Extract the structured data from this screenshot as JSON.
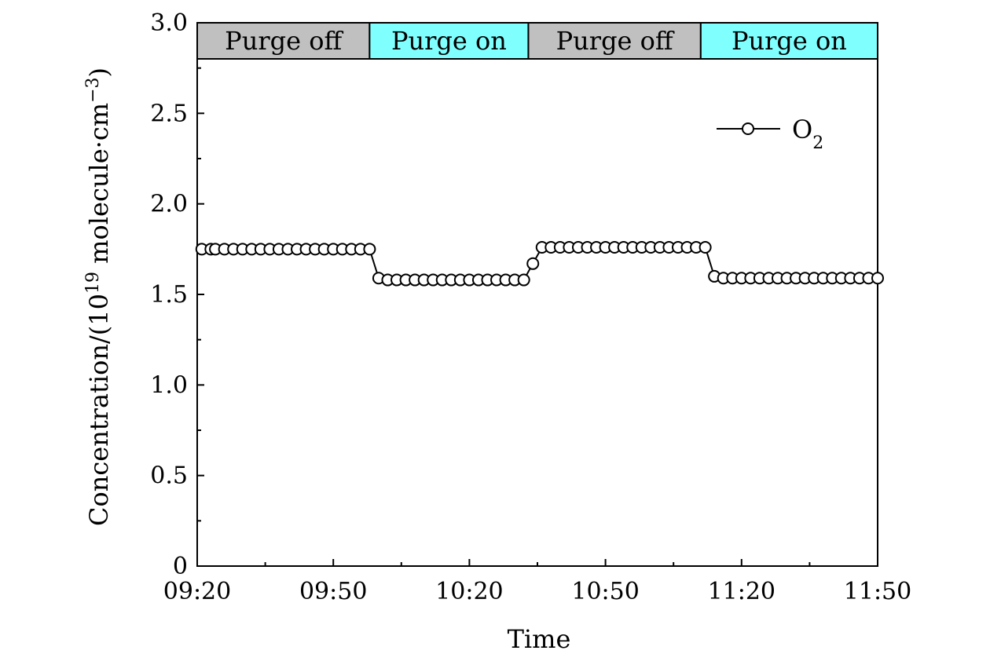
{
  "chart_data": {
    "type": "line",
    "title": "",
    "xlabel": "Time",
    "ylabel": "Concentration/(10",
    "ylabel_sup": "19",
    "ylabel_tail": " molecule·cm",
    "ylabel_tail_sup": "−3",
    "ylabel_end": ")",
    "ylim": [
      0,
      3.0
    ],
    "yticks": [
      0,
      0.5,
      1.0,
      1.5,
      2.0,
      2.5,
      3.0
    ],
    "ytick_labels": [
      "0",
      "0.5",
      "1.0",
      "1.5",
      "2.0",
      "2.5",
      "3.0"
    ],
    "xlim": [
      "09:20",
      "11:50"
    ],
    "xticks": [
      "09:20",
      "09:50",
      "10:20",
      "10:50",
      "11:20",
      "11:50"
    ],
    "x_minor_ticks": [
      "09:35",
      "10:05",
      "10:35",
      "11:05",
      "11:35"
    ],
    "grid": false,
    "legend_position": "top-right",
    "bands": [
      {
        "label": "Purge off",
        "start": "09:20",
        "end": "09:58",
        "color": "#c0c0c0"
      },
      {
        "label": "Purge on",
        "start": "09:58",
        "end": "10:33",
        "color": "#80ffff"
      },
      {
        "label": "Purge off",
        "start": "10:33",
        "end": "11:11",
        "color": "#c0c0c0"
      },
      {
        "label": "Purge on",
        "start": "11:11",
        "end": "11:50",
        "color": "#80ffff"
      }
    ],
    "series": [
      {
        "name": "O",
        "name_sub": "2",
        "marker": "open-circle",
        "color": "#000000",
        "x": [
          "09:21",
          "09:23",
          "09:24",
          "09:26",
          "09:28",
          "09:30",
          "09:32",
          "09:34",
          "09:36",
          "09:38",
          "09:40",
          "09:42",
          "09:44",
          "09:46",
          "09:48",
          "09:50",
          "09:52",
          "09:54",
          "09:56",
          "09:58",
          "10:00",
          "10:02",
          "10:04",
          "10:06",
          "10:08",
          "10:10",
          "10:12",
          "10:14",
          "10:16",
          "10:18",
          "10:20",
          "10:22",
          "10:24",
          "10:26",
          "10:28",
          "10:30",
          "10:32",
          "10:34",
          "10:36",
          "10:38",
          "10:40",
          "10:42",
          "10:44",
          "10:46",
          "10:48",
          "10:50",
          "10:52",
          "10:54",
          "10:56",
          "10:58",
          "11:00",
          "11:02",
          "11:04",
          "11:06",
          "11:08",
          "11:10",
          "11:12",
          "11:14",
          "11:16",
          "11:18",
          "11:20",
          "11:22",
          "11:24",
          "11:26",
          "11:28",
          "11:30",
          "11:32",
          "11:34",
          "11:36",
          "11:38",
          "11:40",
          "11:42",
          "11:44",
          "11:46",
          "11:48",
          "11:50"
        ],
        "values": [
          1.75,
          1.75,
          1.75,
          1.75,
          1.75,
          1.75,
          1.75,
          1.75,
          1.75,
          1.75,
          1.75,
          1.75,
          1.75,
          1.75,
          1.75,
          1.75,
          1.75,
          1.75,
          1.75,
          1.75,
          1.59,
          1.58,
          1.58,
          1.58,
          1.58,
          1.58,
          1.58,
          1.58,
          1.58,
          1.58,
          1.58,
          1.58,
          1.58,
          1.58,
          1.58,
          1.58,
          1.58,
          1.67,
          1.76,
          1.76,
          1.76,
          1.76,
          1.76,
          1.76,
          1.76,
          1.76,
          1.76,
          1.76,
          1.76,
          1.76,
          1.76,
          1.76,
          1.76,
          1.76,
          1.76,
          1.76,
          1.76,
          1.6,
          1.59,
          1.59,
          1.59,
          1.59,
          1.59,
          1.59,
          1.59,
          1.59,
          1.59,
          1.59,
          1.59,
          1.59,
          1.59,
          1.59,
          1.59,
          1.59,
          1.59,
          1.59
        ]
      }
    ]
  }
}
